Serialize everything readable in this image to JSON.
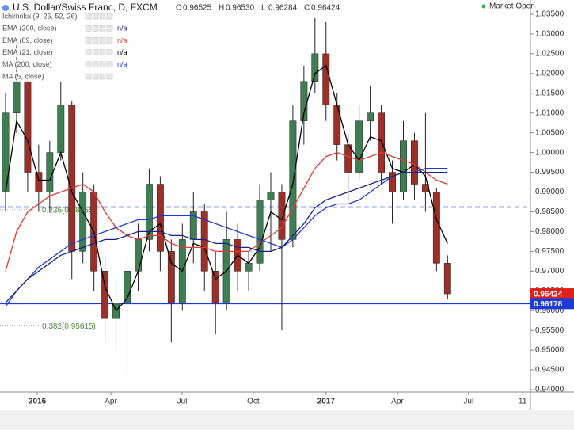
{
  "header": {
    "title": "U.S. Dollar/Swiss Franc, D, FXCM",
    "ohlc": [
      [
        "O",
        "0.96525"
      ],
      [
        "H",
        "0.96530"
      ],
      [
        "L",
        "0.96284"
      ],
      [
        "C",
        "0.96424"
      ]
    ],
    "status": "Market Open"
  },
  "indicators": [
    {
      "name": "Ichimoku (9, 26, 52, 26)"
    },
    {
      "name": "EMA (200, close)",
      "value": "n/a",
      "color": "#1a237e"
    },
    {
      "name": "EMA (89, close)",
      "value": "n/a",
      "color": "#e53935"
    },
    {
      "name": "EMA (21, close)",
      "value": "n/a",
      "color": "#000000"
    },
    {
      "name": "MA (200, close)",
      "value": "n/a",
      "color": "#1e3ad6"
    },
    {
      "name": "MA (5, close)"
    }
  ],
  "chart_data": {
    "type": "candlestick",
    "up_color": "#3f7d52",
    "down_color": "#9c2f27",
    "xlim": [
      -0.5,
      47.5
    ],
    "ylim": [
      0.9394,
      1.0386
    ],
    "xticks": [
      {
        "value": 2.87,
        "label": "2016"
      },
      {
        "value": 9.53,
        "label": "Apr"
      },
      {
        "value": 15.98,
        "label": "Jul"
      },
      {
        "value": 22.42,
        "label": "Oct"
      },
      {
        "value": 29.0,
        "label": "2017"
      },
      {
        "value": 35.46,
        "label": "Apr"
      },
      {
        "value": 41.9,
        "label": "Jul"
      },
      {
        "value": 46.8,
        "label": "11"
      }
    ],
    "yticks": [
      {
        "value": 1.035,
        "label": "1.03500"
      },
      {
        "value": 1.03,
        "label": "1.03000"
      },
      {
        "value": 1.025,
        "label": "1.02500"
      },
      {
        "value": 1.02,
        "label": "1.02000"
      },
      {
        "value": 1.015,
        "label": "1.01500"
      },
      {
        "value": 1.01,
        "label": "1.01000"
      },
      {
        "value": 1.005,
        "label": "1.00500"
      },
      {
        "value": 1.0,
        "label": "1.00000"
      },
      {
        "value": 0.995,
        "label": "0.99500"
      },
      {
        "value": 0.99,
        "label": "0.99000"
      },
      {
        "value": 0.985,
        "label": "0.98500"
      },
      {
        "value": 0.98,
        "label": "0.98000"
      },
      {
        "value": 0.975,
        "label": "0.97500"
      },
      {
        "value": 0.97,
        "label": "0.97000"
      },
      {
        "value": 0.965,
        "label": "0.96500"
      },
      {
        "value": 0.96,
        "label": "0.96000"
      },
      {
        "value": 0.955,
        "label": "0.95500"
      },
      {
        "value": 0.95,
        "label": "0.95000"
      },
      {
        "value": 0.945,
        "label": "0.94500"
      },
      {
        "value": 0.94,
        "label": "0.94000"
      }
    ],
    "open": [
      0.99,
      1.01,
      1.018,
      0.995,
      0.99,
      1.0,
      1.012,
      0.975,
      0.99,
      0.97,
      0.958,
      0.962,
      0.97,
      0.978,
      0.992,
      0.975,
      0.962,
      0.978,
      0.985,
      0.97,
      0.962,
      0.978,
      0.97,
      0.972,
      0.988,
      0.99,
      0.978,
      1.008,
      1.018,
      1.025,
      1.012,
      1.002,
      0.995,
      1.008,
      1.01,
      0.995,
      0.99,
      1.003,
      0.992,
      0.99,
      0.972
    ],
    "high": [
      1.015,
      1.028,
      1.02,
      1.002,
      1.003,
      1.018,
      1.013,
      0.995,
      0.992,
      0.974,
      0.968,
      0.975,
      0.982,
      0.996,
      0.994,
      0.978,
      0.982,
      0.99,
      0.987,
      0.975,
      0.985,
      0.982,
      0.975,
      0.992,
      0.995,
      0.992,
      1.012,
      1.022,
      1.034,
      1.033,
      1.015,
      1.005,
      1.012,
      1.017,
      1.012,
      0.998,
      1.008,
      1.005,
      1.01,
      0.991,
      0.974
    ],
    "low": [
      0.985,
      1.005,
      0.99,
      0.985,
      0.985,
      0.998,
      0.968,
      0.972,
      0.965,
      0.952,
      0.95,
      0.944,
      0.965,
      0.975,
      0.97,
      0.952,
      0.96,
      0.972,
      0.965,
      0.954,
      0.96,
      0.965,
      0.965,
      0.97,
      0.975,
      0.955,
      0.976,
      1.002,
      1.015,
      1.008,
      0.998,
      0.988,
      0.993,
      1.003,
      0.992,
      0.982,
      0.988,
      0.988,
      0.985,
      0.97,
      0.9628
    ],
    "close": [
      1.01,
      1.018,
      0.995,
      0.99,
      1.0,
      1.012,
      0.975,
      0.99,
      0.97,
      0.958,
      0.962,
      0.97,
      0.978,
      0.992,
      0.975,
      0.962,
      0.978,
      0.985,
      0.97,
      0.962,
      0.978,
      0.97,
      0.972,
      0.988,
      0.99,
      0.978,
      1.008,
      1.018,
      1.025,
      1.012,
      1.002,
      0.995,
      1.008,
      1.01,
      0.995,
      0.99,
      1.003,
      0.992,
      0.99,
      0.972,
      0.96424
    ],
    "lines": [
      {
        "color": "#000000",
        "values": [
          0.99,
          1.008,
          1.003,
          0.993,
          0.993,
          1.0,
          0.99,
          0.985,
          0.98,
          0.966,
          0.96,
          0.963,
          0.97,
          0.98,
          0.982,
          0.972,
          0.97,
          0.977,
          0.976,
          0.968,
          0.97,
          0.974,
          0.972,
          0.976,
          0.985,
          0.983,
          0.992,
          1.01,
          1.02,
          1.022,
          1.012,
          1.002,
          0.998,
          1.004,
          1.003,
          0.996,
          0.995,
          0.997,
          0.994,
          0.983,
          0.977
        ]
      },
      {
        "color": "#e53935",
        "values": [
          0.97,
          0.98,
          0.985,
          0.987,
          0.989,
          0.99,
          0.991,
          0.992,
          0.99,
          0.985,
          0.981,
          0.979,
          0.978,
          0.979,
          0.979,
          0.977,
          0.976,
          0.976,
          0.976,
          0.975,
          0.975,
          0.975,
          0.975,
          0.977,
          0.979,
          0.981,
          0.986,
          0.991,
          0.996,
          0.999,
          1.0,
          0.999,
          0.998,
          0.999,
          1.0,
          0.999,
          0.998,
          0.997,
          0.995,
          0.993,
          0.992
        ]
      },
      {
        "color": "#1e3ad6",
        "values": [
          0.961,
          0.965,
          0.968,
          0.971,
          0.973,
          0.975,
          0.977,
          0.978,
          0.979,
          0.98,
          0.981,
          0.982,
          0.983,
          0.983,
          0.984,
          0.984,
          0.984,
          0.984,
          0.983,
          0.982,
          0.981,
          0.98,
          0.979,
          0.978,
          0.977,
          0.976,
          0.978,
          0.981,
          0.984,
          0.986,
          0.987,
          0.987,
          0.988,
          0.99,
          0.992,
          0.994,
          0.995,
          0.995,
          0.996,
          0.996,
          0.996
        ]
      },
      {
        "color": "#1a237e",
        "values": [
          0.962,
          0.965,
          0.968,
          0.97,
          0.972,
          0.974,
          0.975,
          0.976,
          0.977,
          0.978,
          0.978,
          0.979,
          0.98,
          0.98,
          0.98,
          0.979,
          0.979,
          0.978,
          0.978,
          0.977,
          0.977,
          0.976,
          0.976,
          0.975,
          0.975,
          0.976,
          0.979,
          0.982,
          0.986,
          0.988,
          0.989,
          0.99,
          0.991,
          0.992,
          0.993,
          0.994,
          0.995,
          0.995,
          0.995,
          0.995,
          0.995
        ]
      }
    ],
    "hlines": [
      {
        "value": 0.9862,
        "color": "#1e3ad6",
        "dashed": true
      },
      {
        "value": 0.96178,
        "color": "#1e3ad6",
        "dashed": false
      }
    ],
    "fib": [
      {
        "value": 0.98555,
        "label": "0.236(0.98555)"
      },
      {
        "value": 0.95615,
        "label": "0.382(0.95615)"
      }
    ],
    "last_price": 0.96424,
    "last_color": "#e0201b",
    "line_price": 0.96178
  }
}
